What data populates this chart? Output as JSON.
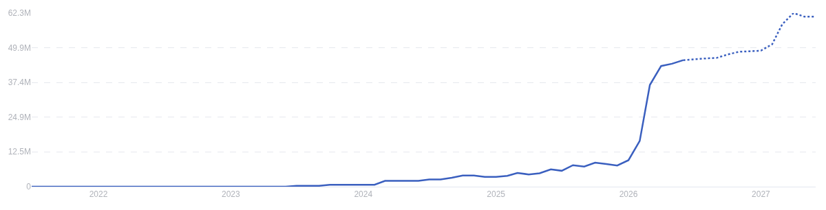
{
  "chart_data": {
    "type": "line",
    "xlim": [
      "2021-07",
      "2027-06"
    ],
    "xticks": [
      "2022",
      "2023",
      "2024",
      "2025",
      "2026",
      "2027"
    ],
    "ylim": [
      0,
      62.3
    ],
    "yticks": [
      0,
      {
        "value": 12.5,
        "label": "12.5M"
      },
      {
        "value": 24.9,
        "label": "24.9M"
      },
      {
        "value": 37.4,
        "label": "37.4M"
      },
      {
        "value": 49.9,
        "label": "49.9M"
      },
      {
        "value": 62.3,
        "label": "62.3M"
      }
    ],
    "grid": "y",
    "marker": "none",
    "series": [
      {
        "color": "#3a5fbf",
        "line_style": "solid",
        "x": [
          "2021-07",
          "2023-06",
          "2023-07",
          "2023-08",
          "2023-09",
          "2023-10",
          "2023-11",
          "2023-12",
          "2024-01",
          "2024-02",
          "2024-03",
          "2024-04",
          "2024-05",
          "2024-06",
          "2024-07",
          "2024-08",
          "2024-09",
          "2024-10",
          "2024-11",
          "2024-12",
          "2025-01",
          "2025-02",
          "2025-03",
          "2025-04",
          "2025-05",
          "2025-06",
          "2025-07",
          "2025-08",
          "2025-09",
          "2025-10",
          "2025-11",
          "2025-12",
          "2026-01",
          "2026-02",
          "2026-03",
          "2026-04",
          "2026-05",
          "2026-06"
        ],
        "values": [
          0,
          0,
          0.3,
          0.3,
          0.3,
          0.7,
          0.7,
          0.7,
          0.7,
          0.7,
          2.1,
          2.1,
          2.1,
          2.1,
          2.6,
          2.6,
          3.2,
          4.0,
          4.0,
          3.5,
          3.5,
          3.9,
          4.9,
          4.4,
          4.8,
          6.2,
          5.7,
          7.7,
          7.2,
          8.6,
          8.1,
          7.6,
          9.5,
          16.4,
          36.5,
          43.3,
          44.1,
          45.4
        ]
      },
      {
        "color": "#3a5fbf",
        "line_style": "dotted",
        "x": [
          "2026-06",
          "2026-07",
          "2026-08",
          "2026-09",
          "2026-10",
          "2026-11",
          "2026-12",
          "2027-01",
          "2027-02",
          "2027-03",
          "2027-04",
          "2027-05",
          "2027-06"
        ],
        "values": [
          45.4,
          45.7,
          46.0,
          46.2,
          47.4,
          48.4,
          48.6,
          48.8,
          51.1,
          58.3,
          62.3,
          61.0,
          61.0
        ]
      }
    ]
  }
}
